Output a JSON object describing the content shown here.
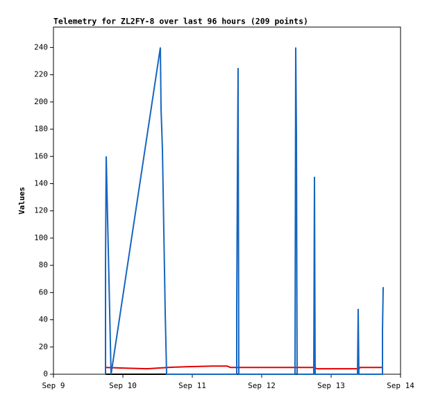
{
  "chart_data": {
    "type": "line",
    "title": "Telemetry for ZL2FY-8 over last 96 hours (209 points)",
    "y_label": "Values",
    "xlim": [
      9,
      14
    ],
    "xticks": [
      {
        "value": 9,
        "label": "Sep 9"
      },
      {
        "value": 10,
        "label": "Sep 10"
      },
      {
        "value": 11,
        "label": "Sep 11"
      },
      {
        "value": 12,
        "label": "Sep 12"
      },
      {
        "value": 13,
        "label": "Sep 13"
      },
      {
        "value": 14,
        "label": "Sep 14"
      }
    ],
    "ylim": [
      0,
      255
    ],
    "yticks": [
      0,
      20,
      40,
      60,
      80,
      100,
      120,
      140,
      160,
      180,
      200,
      220,
      240
    ],
    "series": [
      {
        "color": "#000000",
        "x": [
          9.75,
          13.74
        ],
        "values": [
          0,
          0
        ]
      },
      {
        "color": "#e00000",
        "x": [
          9.75,
          10.0,
          10.35,
          10.65,
          10.9,
          11.3,
          11.5,
          11.55,
          12.75,
          12.8,
          13.4,
          13.42,
          13.74
        ],
        "values": [
          5,
          4.5,
          4,
          5,
          5.5,
          6,
          6,
          5,
          5,
          4,
          4,
          5,
          5
        ]
      },
      {
        "color": "#1565c0",
        "x": [
          9.75,
          9.75,
          9.76,
          9.83,
          10.54,
          10.55,
          10.57,
          10.58,
          10.59,
          10.61,
          10.63,
          11.64,
          11.64,
          11.65,
          11.66,
          11.67,
          12.48,
          12.49,
          12.5,
          12.51,
          12.75,
          12.76,
          12.77,
          13.38,
          13.39,
          13.4,
          13.74,
          13.74,
          13.75
        ],
        "values": [
          0,
          80,
          160,
          0,
          240,
          195,
          165,
          135,
          105,
          45,
          0,
          0,
          48,
          145,
          225,
          0,
          0,
          240,
          177,
          0,
          0,
          145,
          0,
          0,
          48,
          0,
          0,
          32,
          64
        ]
      }
    ]
  }
}
